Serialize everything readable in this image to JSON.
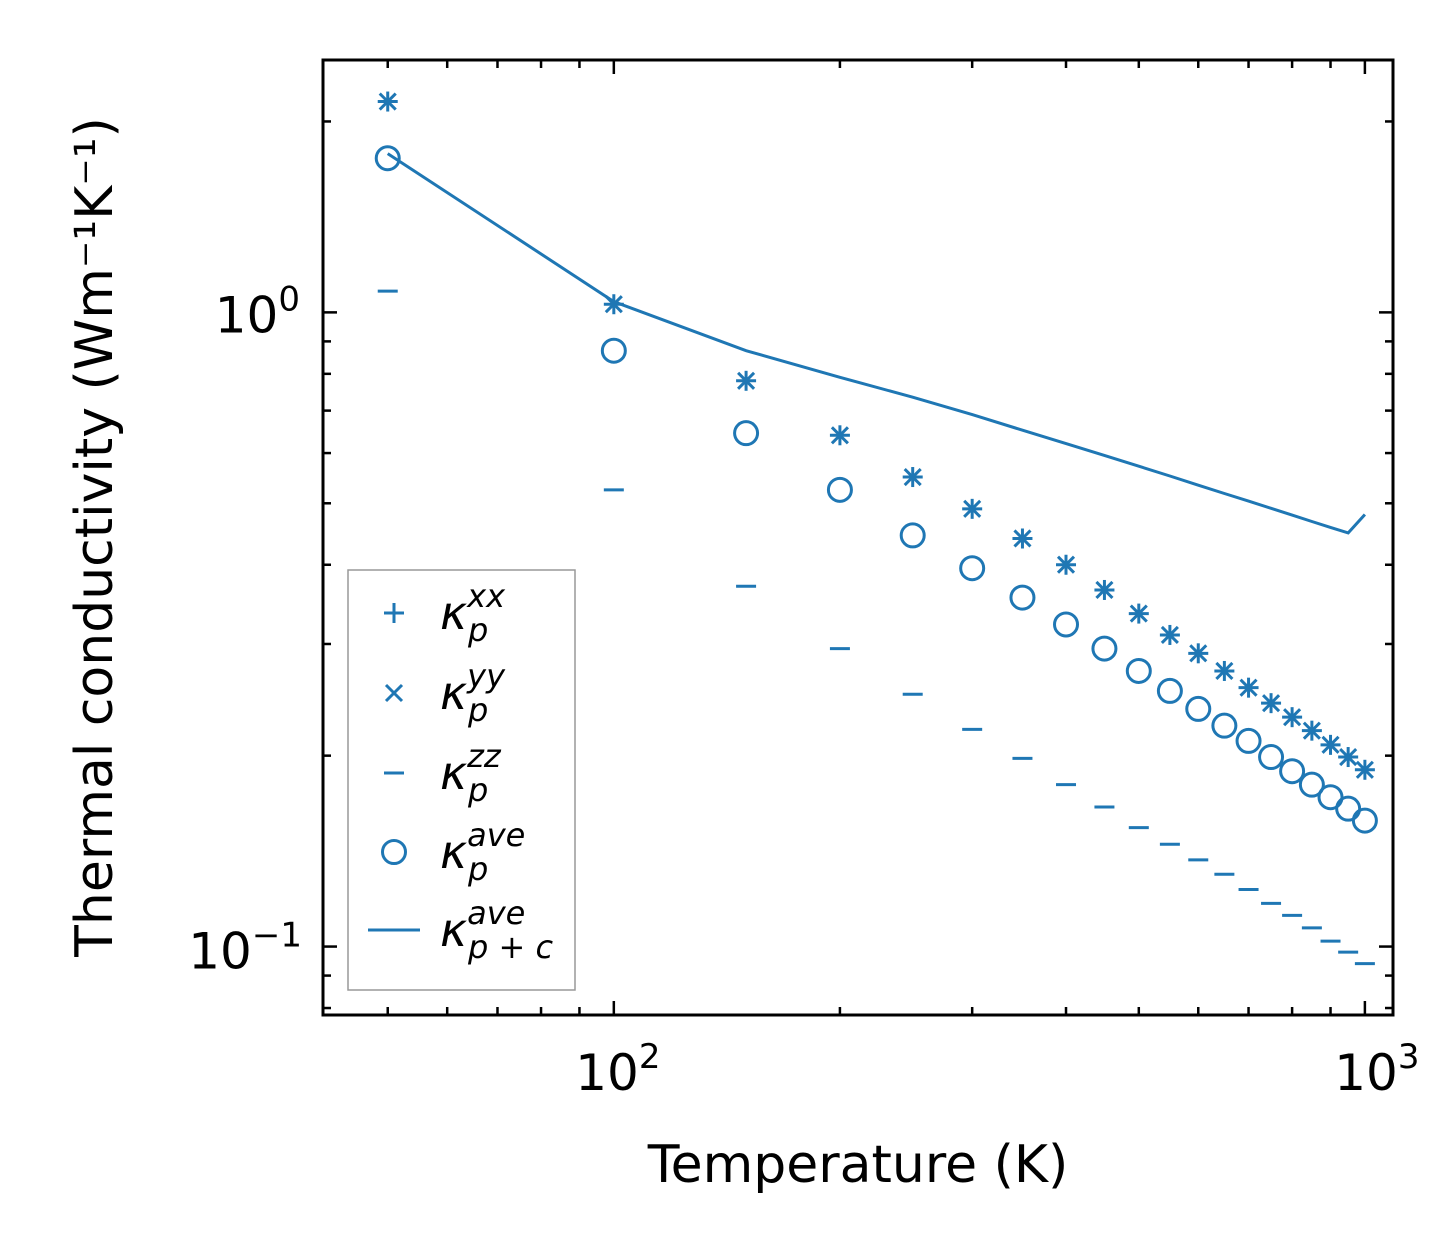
{
  "chart_data": {
    "type": "scatter",
    "xscale": "log",
    "yscale": "log",
    "xlabel": "Temperature (K)",
    "ylabel": "Thermal conductivity (Wm⁻¹K⁻¹)",
    "xlim": [
      41,
      1090
    ],
    "ylim": [
      0.078,
      2.5
    ],
    "x_ticks": [
      {
        "base": "10",
        "exp": "2"
      },
      {
        "base": "10",
        "exp": "3"
      }
    ],
    "y_ticks": [
      {
        "base": "10",
        "exp": "−1"
      },
      {
        "base": "10",
        "exp": "0"
      }
    ],
    "legend_position": "lower-left",
    "color": "#1f77b4",
    "x": [
      50,
      100,
      150,
      200,
      250,
      300,
      350,
      400,
      450,
      500,
      550,
      600,
      650,
      700,
      750,
      800,
      850,
      900,
      950,
      1000
    ],
    "series": [
      {
        "name": "kxx",
        "label_main": "κ",
        "label_sup": "xx",
        "label_sub": "p",
        "marker": "plus",
        "values": [
          2.15,
          1.03,
          0.78,
          0.64,
          0.55,
          0.49,
          0.44,
          0.4,
          0.365,
          0.335,
          0.31,
          0.29,
          0.272,
          0.256,
          0.242,
          0.23,
          0.219,
          0.208,
          0.199,
          0.19
        ]
      },
      {
        "name": "kyy",
        "label_main": "κ",
        "label_sup": "yy",
        "label_sub": "p",
        "marker": "x",
        "values": [
          2.15,
          1.03,
          0.78,
          0.64,
          0.55,
          0.49,
          0.44,
          0.4,
          0.365,
          0.335,
          0.31,
          0.29,
          0.272,
          0.256,
          0.242,
          0.23,
          0.219,
          0.208,
          0.199,
          0.19
        ]
      },
      {
        "name": "kzz",
        "label_main": "κ",
        "label_sup": "zz",
        "label_sub": "p",
        "marker": "hline",
        "values": [
          1.08,
          0.525,
          0.37,
          0.295,
          0.25,
          0.22,
          0.198,
          0.18,
          0.166,
          0.154,
          0.145,
          0.137,
          0.13,
          0.123,
          0.117,
          0.112,
          0.107,
          0.102,
          0.098,
          0.094
        ]
      },
      {
        "name": "kave",
        "label_main": "κ",
        "label_sup": "ave",
        "label_sub": "p",
        "marker": "circle",
        "values": [
          1.75,
          0.87,
          0.645,
          0.525,
          0.445,
          0.395,
          0.355,
          0.322,
          0.295,
          0.272,
          0.253,
          0.237,
          0.223,
          0.211,
          0.199,
          0.189,
          0.18,
          0.172,
          0.165,
          0.158
        ]
      },
      {
        "name": "kave_pc",
        "label_main": "κ",
        "label_sup": "ave",
        "label_sub": "p + c",
        "marker": "line",
        "x": [
          50,
          100,
          150,
          200,
          250,
          300,
          350,
          400,
          450,
          500,
          550,
          600,
          650,
          700,
          750,
          800,
          850,
          900,
          950,
          1000
        ],
        "values": [
          1.78,
          1.04,
          0.87,
          0.79,
          0.735,
          0.69,
          0.652,
          0.621,
          0.595,
          0.572,
          0.552,
          0.534,
          0.518,
          0.504,
          0.491,
          0.479,
          0.468,
          0.458,
          0.449,
          0.48
        ]
      }
    ]
  }
}
